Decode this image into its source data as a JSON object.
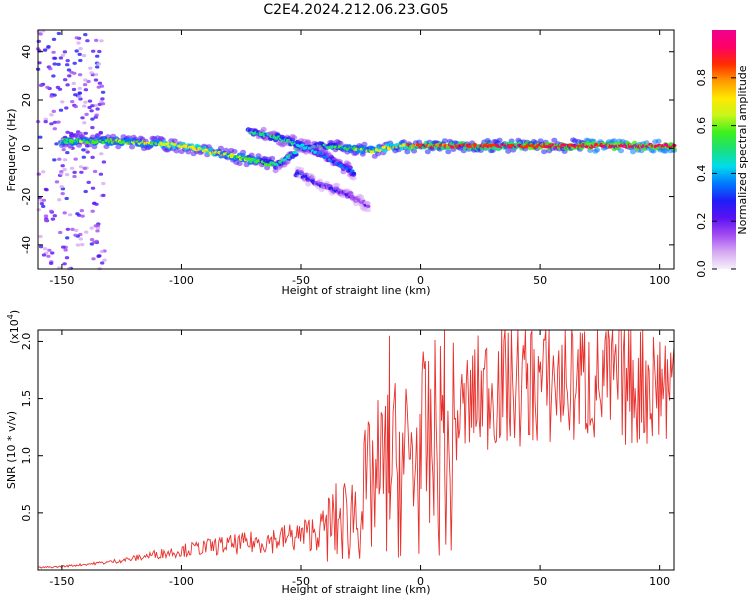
{
  "chart_data": [
    {
      "type": "heatmap",
      "title": "C2E4.2024.212.06.23.G05",
      "xlabel": "Height of straight line (km)",
      "ylabel": "Frequency (Hz)",
      "xlim": [
        -160,
        106
      ],
      "ylim": [
        -50,
        49
      ],
      "xticks": [
        -150,
        -100,
        -50,
        0,
        50,
        100
      ],
      "yticks": [
        -40,
        -20,
        0,
        20,
        40
      ],
      "colorbar": {
        "label": "Normalized spectral amplitude",
        "range": [
          0.0,
          1.0
        ],
        "ticks": [
          "0.0",
          "0.2",
          "0.4",
          "0.6",
          "0.8"
        ],
        "colors": [
          "#f6f0fb",
          "#d6a9f2",
          "#a24bf2",
          "#5a12f4",
          "#1f1ef6",
          "#0078ff",
          "#00dcea",
          "#1be07a",
          "#3df01c",
          "#c8f51a",
          "#ffe800",
          "#ff9a00",
          "#ff2d00",
          "#ff0066",
          "#f00090"
        ]
      },
      "ridges": [
        {
          "name": "main",
          "x": [
            -150,
            -130,
            -110,
            -100,
            -90,
            -80,
            -70,
            -60,
            -50,
            -40,
            -30,
            -20,
            -10,
            0,
            10,
            30,
            50,
            70,
            90,
            106
          ],
          "y": [
            3,
            3,
            2,
            1,
            -1,
            -3,
            -5,
            -7,
            0,
            1,
            0,
            -1,
            1,
            1,
            1,
            1,
            1,
            1,
            1,
            1
          ],
          "amplitude": [
            0.55,
            0.6,
            0.65,
            0.7,
            0.68,
            0.62,
            0.55,
            0.5,
            0.45,
            0.5,
            0.55,
            0.65,
            0.75,
            0.8,
            0.85,
            0.88,
            0.9,
            0.92,
            0.93,
            0.92
          ]
        },
        {
          "name": "upper-branch",
          "x": [
            -72,
            -62,
            -52,
            -42,
            -35,
            -28
          ],
          "y": [
            7,
            5,
            2,
            -2,
            -6,
            -10
          ],
          "amplitude": [
            0.45,
            0.5,
            0.45,
            0.4,
            0.35,
            0.3
          ]
        },
        {
          "name": "lower-branch",
          "x": [
            -52,
            -44,
            -36,
            -28,
            -22
          ],
          "y": [
            -10,
            -14,
            -17,
            -20,
            -24
          ],
          "amplitude": [
            0.3,
            0.28,
            0.25,
            0.2,
            0.15
          ]
        }
      ]
    },
    {
      "type": "line",
      "title": "",
      "xlabel": "Height of straight line (km)",
      "ylabel": "SNR (10 * v/v)",
      "multiplier": "(x10",
      "multiplier_exp": "4",
      "multiplier_close": ")",
      "xlim": [
        -160,
        106
      ],
      "ylim": [
        0.0,
        2.1
      ],
      "xticks": [
        -150,
        -100,
        -50,
        0,
        50,
        100
      ],
      "yticks": [
        "0.5",
        "1.0",
        "1.5",
        "2.0"
      ],
      "color": "#e8302c",
      "x": [
        -160,
        -150,
        -140,
        -130,
        -120,
        -110,
        -100,
        -90,
        -80,
        -70,
        -60,
        -50,
        -40,
        -30,
        -25,
        -20,
        -15,
        -10,
        -5,
        0,
        5,
        10,
        12,
        15,
        20,
        25,
        30,
        40,
        50,
        60,
        70,
        80,
        90,
        100,
        106
      ],
      "y": [
        0.02,
        0.03,
        0.05,
        0.07,
        0.1,
        0.14,
        0.17,
        0.2,
        0.22,
        0.24,
        0.27,
        0.3,
        0.36,
        0.46,
        0.6,
        0.75,
        0.85,
        0.9,
        0.95,
        1.0,
        1.05,
        1.1,
        0.75,
        1.3,
        1.45,
        1.55,
        1.6,
        1.62,
        1.64,
        1.65,
        1.65,
        1.64,
        1.64,
        1.64,
        1.62
      ],
      "spikes": [
        {
          "x": -13,
          "y": 2.05
        },
        {
          "x": 10,
          "y": 2.1
        }
      ]
    }
  ]
}
